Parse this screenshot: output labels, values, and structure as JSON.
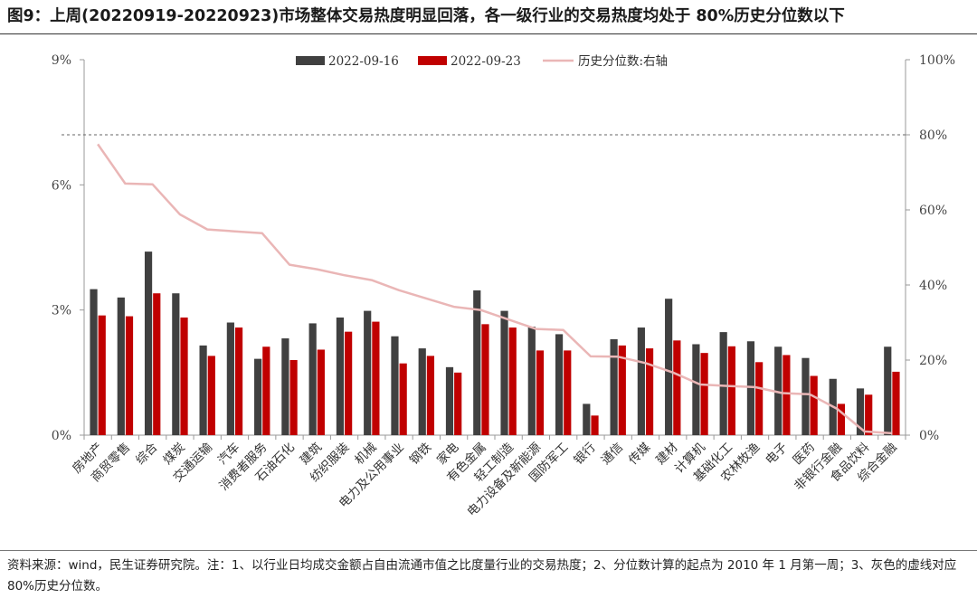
{
  "title": "图9：上周(20220919-20220923)市场整体交易热度明显回落，各一级行业的交易热度均处于 80%历史分位数以下",
  "note": "资料来源：wind，民生证券研究院。注：1、以行业日均成交金额占自由流通市值之比度量行业的交易热度；2、分位数计算的起点为 2010 年 1 月第一周；3、灰色的虚线对应 80%历史分位数。",
  "chart_data": {
    "type": "bar",
    "categories": [
      "房地产",
      "商贸零售",
      "综合",
      "煤炭",
      "交通运输",
      "汽车",
      "消费者服务",
      "石油石化",
      "建筑",
      "纺织服装",
      "机械",
      "电力及公用事业",
      "钢铁",
      "家电",
      "有色金属",
      "轻工制造",
      "电力设备及新能源",
      "国防军工",
      "银行",
      "通信",
      "传媒",
      "建材",
      "计算机",
      "基础化工",
      "农林牧渔",
      "电子",
      "医药",
      "非银行金融",
      "食品饮料",
      "综合金融"
    ],
    "series": [
      {
        "name": "2022-09-16",
        "axis": "left",
        "color": "#404040",
        "values": [
          3.5,
          3.3,
          4.4,
          3.4,
          2.15,
          2.7,
          1.83,
          2.32,
          2.68,
          2.82,
          2.98,
          2.37,
          2.08,
          1.63,
          3.47,
          2.98,
          2.6,
          2.42,
          0.75,
          2.3,
          2.58,
          3.27,
          2.18,
          2.47,
          2.25,
          2.12,
          1.85,
          1.35,
          1.12,
          2.12
        ]
      },
      {
        "name": "2022-09-23",
        "axis": "left",
        "color": "#c00000",
        "values": [
          2.87,
          2.85,
          3.4,
          2.82,
          1.9,
          2.58,
          2.12,
          1.8,
          2.05,
          2.48,
          2.72,
          1.72,
          1.9,
          1.5,
          2.66,
          2.58,
          2.03,
          2.03,
          0.47,
          2.15,
          2.08,
          2.27,
          1.97,
          2.13,
          1.75,
          1.92,
          1.42,
          0.75,
          0.97,
          1.52
        ]
      },
      {
        "name": "历史分位数:右轴",
        "axis": "right",
        "color": "#eab6b6",
        "values": [
          77.5,
          67,
          66.8,
          58.8,
          54.8,
          54.3,
          53.8,
          45.4,
          44.2,
          42.6,
          41.3,
          38.6,
          36.4,
          34.2,
          33.3,
          30.8,
          28.3,
          28,
          21,
          20.9,
          19.2,
          16.7,
          13.5,
          13.1,
          12.8,
          11.2,
          10.9,
          7,
          1,
          0.5
        ]
      }
    ],
    "y_left": {
      "ticks": [
        "0%",
        "3%",
        "6%",
        "9%"
      ],
      "tick_values": [
        0,
        3,
        6,
        9
      ],
      "ylim": [
        0,
        9
      ]
    },
    "y_right": {
      "ticks": [
        "0%",
        "20%",
        "40%",
        "60%",
        "80%",
        "100%"
      ],
      "tick_values": [
        0,
        20,
        40,
        60,
        80,
        100
      ],
      "ylim": [
        0,
        100
      ]
    },
    "reference_line": {
      "axis": "right",
      "value": 80,
      "color": "#666666",
      "style": "dashed"
    },
    "legend": {
      "placement": "top-center"
    },
    "grid": false
  }
}
